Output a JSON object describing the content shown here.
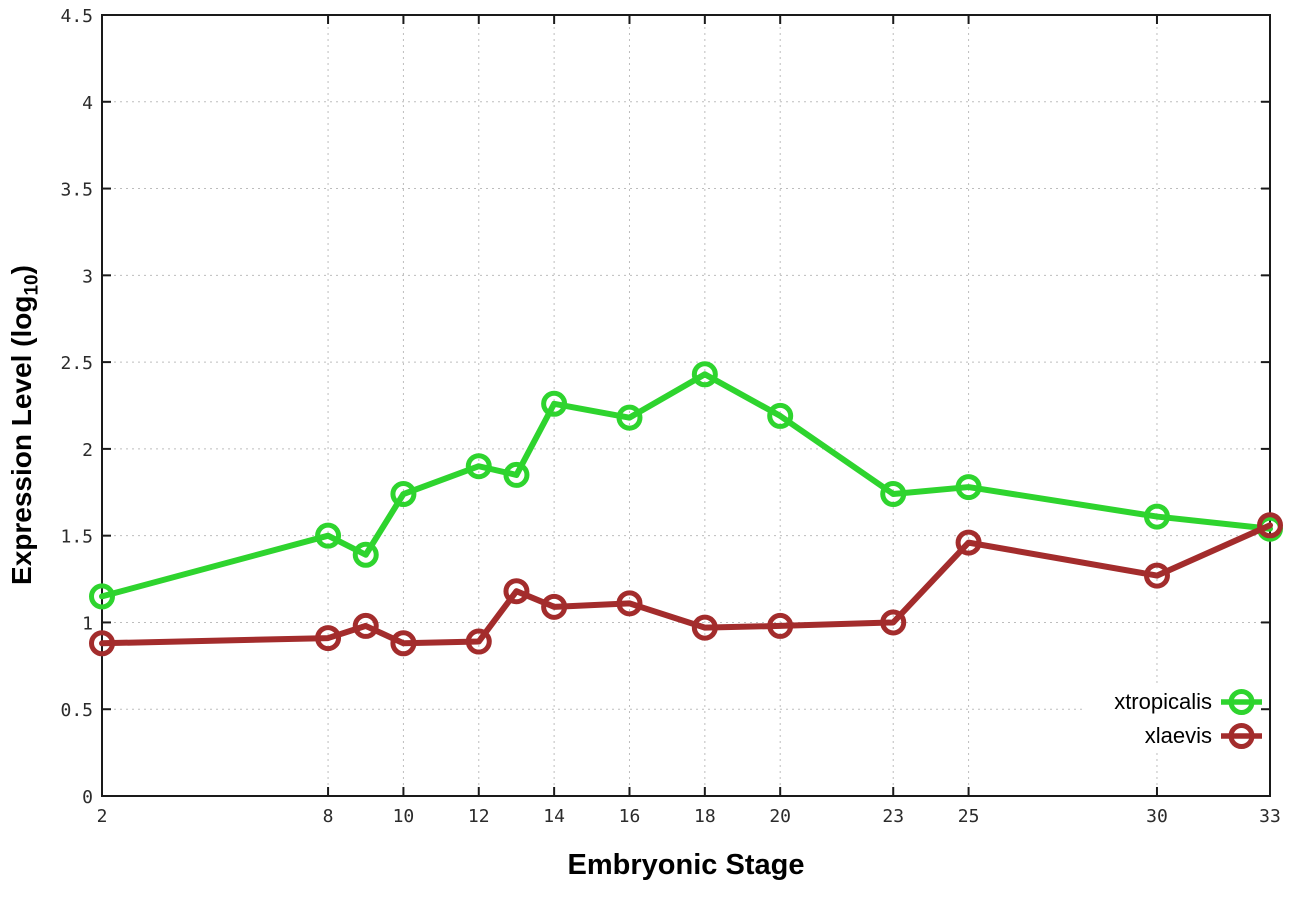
{
  "chart_data": {
    "type": "line",
    "title": "",
    "xlabel": "Embryonic Stage",
    "ylabel": "Expression Level (log10)",
    "ylabel_parts": {
      "main": "Expression Level (log",
      "sub": "10",
      "close": ")"
    },
    "x": [
      2,
      8,
      9,
      10,
      12,
      13,
      14,
      16,
      18,
      20,
      23,
      25,
      30,
      33
    ],
    "series": [
      {
        "name": "xtropicalis",
        "color": "#2ed42e",
        "values": [
          1.15,
          1.5,
          1.39,
          1.74,
          1.9,
          1.85,
          2.26,
          2.18,
          2.43,
          2.19,
          1.74,
          1.78,
          1.61,
          1.54
        ]
      },
      {
        "name": "xlaevis",
        "color": "#a32c2c",
        "values": [
          0.88,
          0.91,
          0.98,
          0.88,
          0.89,
          1.18,
          1.09,
          1.11,
          0.97,
          0.98,
          1.0,
          1.46,
          1.27,
          1.56
        ]
      }
    ],
    "xlim": [
      2,
      33
    ],
    "ylim": [
      0,
      4.5
    ],
    "xticks": [
      2,
      8,
      10,
      12,
      14,
      16,
      18,
      20,
      23,
      25,
      30,
      33
    ],
    "xtick_labels": [
      "2",
      "8",
      "10",
      "12",
      "14",
      "16",
      "18",
      "20",
      "23",
      "25",
      "30",
      "33"
    ],
    "yticks": [
      0,
      0.5,
      1,
      1.5,
      2,
      2.5,
      3,
      3.5,
      4,
      4.5
    ],
    "ytick_labels": [
      "0",
      "0.5",
      "1",
      "1.5",
      "2",
      "2.5",
      "3",
      "3.5",
      "4",
      "4.5"
    ],
    "grid": true,
    "legend_position": "bottom-right",
    "colors": {
      "axis": "#1a1a1a",
      "grid": "#bdbdbd",
      "tick_label": "#2b2b2b",
      "background": "#ffffff",
      "legend_text": "#000000"
    }
  }
}
